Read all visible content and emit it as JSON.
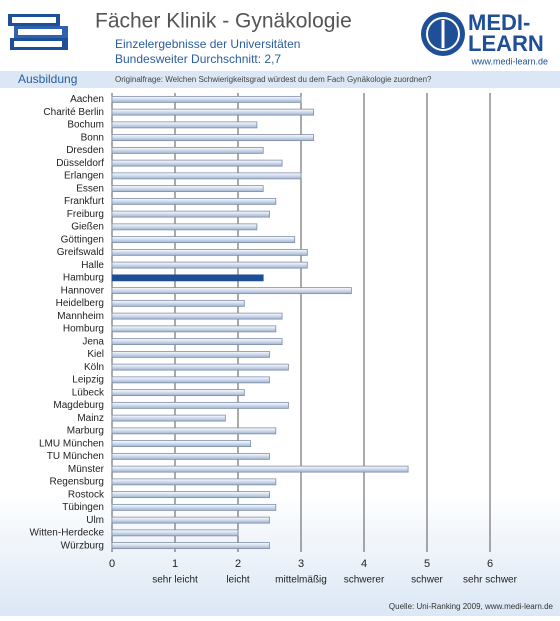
{
  "chart_data": {
    "type": "hbar",
    "title": "Fächer Klinik - Gynäkologie",
    "subtitle": [
      "Einzelergebnisse der Universitäten",
      "Bundesweiter Durchschnitt: 2,7"
    ],
    "logo": [
      "MEDI-",
      "LEARN"
    ],
    "logo_url": "www.medi-learn.de",
    "section": "Ausbildung",
    "question": "Originalfrage: Welchen Schwierigkeitsgrad würdest du dem Fach Gynäkologie zuordnen?",
    "source": "Quelle: Uni-Ranking 2009, www.medi-learn.de",
    "categories": [
      "Aachen",
      "Charité Berlin",
      "Bochum",
      "Bonn",
      "Dresden",
      "Düsseldorf",
      "Erlangen",
      "Essen",
      "Frankfurt",
      "Freiburg",
      "Gießen",
      "Göttingen",
      "Greifswald",
      "Halle",
      "Hamburg",
      "Hannover",
      "Heidelberg",
      "Mannheim",
      "Homburg",
      "Jena",
      "Kiel",
      "Köln",
      "Leipzig",
      "Lübeck",
      "Magdeburg",
      "Mainz",
      "Marburg",
      "LMU München",
      "TU München",
      "Münster",
      "Regensburg",
      "Rostock",
      "Tübingen",
      "Ulm",
      "Witten-Herdecke",
      "Würzburg"
    ],
    "values": [
      3.0,
      3.2,
      2.3,
      3.2,
      2.4,
      2.7,
      3.0,
      2.4,
      2.6,
      2.5,
      2.3,
      2.9,
      3.1,
      3.1,
      2.4,
      3.8,
      2.1,
      2.7,
      2.6,
      2.7,
      2.5,
      2.8,
      2.5,
      2.1,
      2.8,
      1.8,
      2.6,
      2.2,
      2.5,
      4.7,
      2.6,
      2.5,
      2.6,
      2.5,
      2.0,
      2.5
    ],
    "color": "#c9d6e8",
    "highlight_category": "Hamburg",
    "highlight_color": "#1f4f96",
    "xlim": [
      0,
      6
    ],
    "xticks": [
      0,
      1,
      2,
      3,
      4,
      5,
      6
    ],
    "xtick_descriptions": [
      "sehr leicht",
      "leicht",
      "mittelmäßig",
      "schwerer",
      "schwer",
      "sehr schwer"
    ],
    "grid": true
  }
}
